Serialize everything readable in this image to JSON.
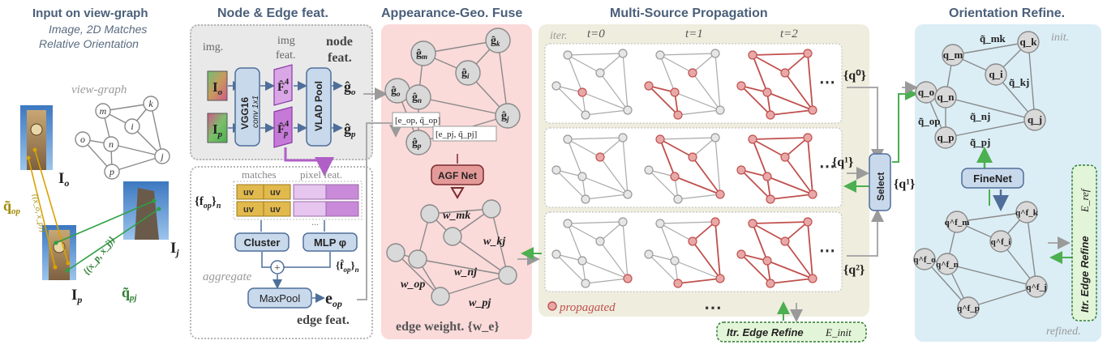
{
  "titles": {
    "input": "Input on view-graph",
    "input_sub1": "Image, 2D Matches",
    "input_sub2": "Relative Orientation",
    "node_edge": "Node & Edge feat.",
    "fuse": "Appearance-Geo. Fuse",
    "propagation": "Multi-Source Propagation",
    "refine": "Orientation Refine."
  },
  "input": {
    "view_graph": "view-graph",
    "nodes": [
      "m",
      "k",
      "i",
      "o",
      "n",
      "j",
      "p"
    ],
    "I_o": "I",
    "I_o_sub": "o",
    "I_p": "I",
    "I_p_sub": "p",
    "I_j": "I",
    "I_j_sub": "j",
    "q_op": "q̃",
    "q_op_sub": "op",
    "q_pj": "q̃",
    "q_pj_sub": "pj",
    "match_op": "{(x_o, x_p)}",
    "match_pj": "{(x_p, x_j)}"
  },
  "node_edge": {
    "img": "img.",
    "img_feat1": "img",
    "img_feat2": "feat.",
    "node_feat1": "node",
    "node_feat2": "feat.",
    "vgg": "VGG16",
    "conv": "conv 1x1",
    "vlad": "VLAD Pool",
    "Io": "I",
    "Io_sub": "o",
    "Ip": "I",
    "Ip_sub": "p",
    "Fo": "F̂",
    "Fo_sub": "o",
    "Fo_sup": "4",
    "Fp": "F̂",
    "Fp_sub": "p",
    "Fp_sup": "4",
    "go": "ĝ",
    "go_sub": "o",
    "gp": "ĝ",
    "gp_sub": "p",
    "matches": "matches",
    "pixel_feat": "pixel feat.",
    "uv": "uv",
    "fop": "{f",
    "fop_sub": "op",
    "fop_end": "}",
    "fop_n": "n",
    "ellipsis": "...",
    "cluster": "Cluster",
    "mlp": "MLP φ",
    "fhat": "{f̂",
    "fhat_sub": "op",
    "fhat_end": "}",
    "fhat_n": "n",
    "aggregate": "aggregate",
    "maxpool": "MaxPool",
    "eop": "e",
    "eop_sub": "op",
    "edge_feat": "edge feat."
  },
  "fuse": {
    "nodes": [
      "ĝ",
      "ĝ",
      "ĝ",
      "ĝ",
      "ĝ",
      "ĝ",
      "ĝ"
    ],
    "node_subs": [
      "m",
      "k",
      "i",
      "o",
      "n",
      "j",
      "p"
    ],
    "pair1": "[e_op, q̃_op]",
    "pair2": "[e_pj, q̃_pj]",
    "agf": "AGF Net",
    "weights": [
      "w_mk",
      "w_kj",
      "w_op",
      "w_nj",
      "w_pj"
    ],
    "edge_weight": "edge weight. {w_e}"
  },
  "propagation": {
    "iter": "iter.",
    "t0": "t=0",
    "t1": "t=1",
    "t2": "t=2",
    "dots": "⋯",
    "propagated": "propagated",
    "q0": "{q⁰}",
    "q1": "{q¹}",
    "q2": "{q²}",
    "select": "Select",
    "q1_out": "{q¹}",
    "itr_init": "Itr. Edge Refine",
    "e_init": "E_init"
  },
  "refine": {
    "init": "init.",
    "refined": "refined.",
    "finenet": "FineNet",
    "itr_ref": "Itr. Edge Refine",
    "e_ref": "E_ref",
    "init_nodes": [
      "q_m",
      "q_k",
      "q_i",
      "q_o",
      "q_n",
      "q_j",
      "q_p"
    ],
    "edge_labels": [
      "q̃_mk",
      "q̃_kj",
      "q̃_nj",
      "q̃_op",
      "q̃_pj"
    ],
    "refined_nodes": [
      "q^f_m",
      "q^f_k",
      "q^f_i",
      "q^f_o",
      "q^f_n",
      "q^f_j",
      "q^f_p"
    ]
  },
  "colors": {
    "title": "#4a5f7a",
    "fuse_bg": "#fbdada",
    "prop_bg": "#efedde",
    "refine_bg": "#dbeef6",
    "node_fill": "#d9d9d9",
    "node_stroke": "#8a8a8a",
    "propagated": "#c0504d",
    "purple": "#b05fc6",
    "green": "#4caf50",
    "olive": "#a08a00"
  }
}
